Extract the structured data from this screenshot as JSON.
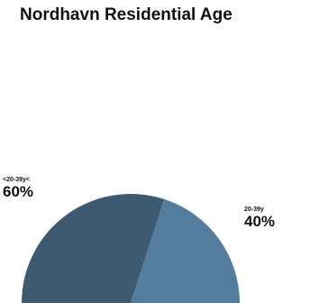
{
  "chart_data": {
    "type": "pie",
    "title": "Nordhavn Residential Age",
    "style": "half-donut (semicircle)",
    "slices": [
      {
        "label": "<20-39y<",
        "value": 60,
        "display": "60%",
        "color": "#3d5a71"
      },
      {
        "label": "20-39y",
        "value": 40,
        "display": "40%",
        "color": "#547d9d"
      }
    ],
    "legend": "none",
    "grid": false
  }
}
